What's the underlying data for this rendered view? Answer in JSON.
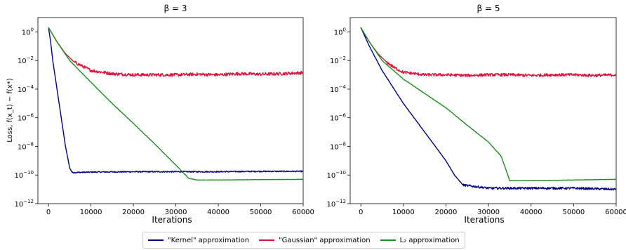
{
  "ylabel": "Loss, f(x_t) − f(x*)",
  "colors": {
    "kernel": "#00007f",
    "gaussian": "#dc143c",
    "l2": "#228b22"
  },
  "legend": [
    {
      "series": "kernel",
      "label": "\"Kernel\" approximation"
    },
    {
      "series": "gaussian",
      "label": "\"Gaussian\" approximation"
    },
    {
      "series": "l2",
      "label": "L₂ approximation"
    }
  ],
  "chart_data": [
    {
      "type": "line",
      "title": "β = 3",
      "xlabel": "Iterations",
      "ylabel": "Loss, f(x_t) − f(x*)",
      "yscale": "log",
      "xlim": [
        -2500,
        60000
      ],
      "ylim": [
        1e-12,
        10
      ],
      "xticks": [
        0,
        10000,
        20000,
        30000,
        40000,
        50000,
        60000
      ],
      "yticks_exp": [
        0,
        -2,
        -4,
        -6,
        -8,
        -10,
        -12
      ],
      "series": [
        {
          "key": "kernel",
          "name": "\"Kernel\" approximation",
          "x": [
            0,
            500,
            1000,
            2000,
            3000,
            4000,
            5000,
            5600,
            6000,
            10000,
            20000,
            30000,
            40000,
            50000,
            60000
          ],
          "y": [
            2,
            0.2,
            0.01,
            0.0001,
            1e-06,
            1e-08,
            3e-10,
            1.5e-10,
            1.5e-10,
            1.6e-10,
            1.7e-10,
            1.7e-10,
            1.7e-10,
            1.8e-10,
            1.8e-10
          ],
          "noise": 0.08
        },
        {
          "key": "gaussian",
          "name": "\"Gaussian\" approximation",
          "x": [
            0,
            2000,
            4000,
            6000,
            8000,
            10000,
            15000,
            20000,
            25000,
            30000,
            35000,
            40000,
            45000,
            50000,
            55000,
            60000
          ],
          "y": [
            2,
            0.2,
            0.03,
            0.008,
            0.004,
            0.002,
            0.0012,
            0.001,
            0.001,
            0.001,
            0.0011,
            0.001,
            0.0012,
            0.0011,
            0.0012,
            0.0014
          ],
          "noise": 0.22
        },
        {
          "key": "l2",
          "name": "L₂ approximation",
          "x": [
            0,
            2000,
            5000,
            10000,
            15000,
            20000,
            25000,
            30000,
            33000,
            35000,
            40000,
            50000,
            60000
          ],
          "y": [
            2,
            0.2,
            0.01,
            0.0003,
            1e-05,
            4e-07,
            1.5e-08,
            5e-10,
            6e-11,
            4.5e-11,
            4.5e-11,
            4.8e-11,
            5e-11
          ],
          "noise": 0.02
        }
      ]
    },
    {
      "type": "line",
      "title": "β = 5",
      "xlabel": "Iterations",
      "ylabel": "",
      "yscale": "log",
      "xlim": [
        -2500,
        60000
      ],
      "ylim": [
        1e-12,
        10
      ],
      "xticks": [
        0,
        10000,
        20000,
        30000,
        40000,
        50000,
        60000
      ],
      "yticks_exp": [
        0,
        -2,
        -4,
        -6,
        -8,
        -10,
        -12
      ],
      "series": [
        {
          "key": "kernel",
          "name": "\"Kernel\" approximation",
          "x": [
            0,
            2000,
            5000,
            10000,
            15000,
            20000,
            22000,
            24000,
            30000,
            40000,
            50000,
            60000
          ],
          "y": [
            2,
            0.1,
            0.002,
            1e-05,
            1e-07,
            1e-09,
            1e-10,
            2e-11,
            1.2e-11,
            1.2e-11,
            1.2e-11,
            1e-11
          ],
          "noise": 0.15
        },
        {
          "key": "gaussian",
          "name": "\"Gaussian\" approximation",
          "x": [
            0,
            2000,
            4000,
            6000,
            8000,
            10000,
            15000,
            20000,
            25000,
            30000,
            35000,
            40000,
            45000,
            50000,
            55000,
            60000
          ],
          "y": [
            2,
            0.2,
            0.03,
            0.008,
            0.003,
            0.0015,
            0.001,
            0.001,
            0.0009,
            0.001,
            0.001,
            0.0009,
            0.001,
            0.001,
            0.0009,
            0.001
          ],
          "noise": 0.2
        },
        {
          "key": "l2",
          "name": "L₂ approximation",
          "x": [
            0,
            2000,
            5000,
            10000,
            15000,
            20000,
            25000,
            30000,
            33000,
            35000,
            40000,
            50000,
            60000
          ],
          "y": [
            2,
            0.2,
            0.01,
            0.0005,
            5e-05,
            5e-06,
            3e-07,
            2e-08,
            2e-09,
            4e-11,
            4e-11,
            4.5e-11,
            5e-11
          ],
          "noise": 0.02
        }
      ]
    }
  ]
}
